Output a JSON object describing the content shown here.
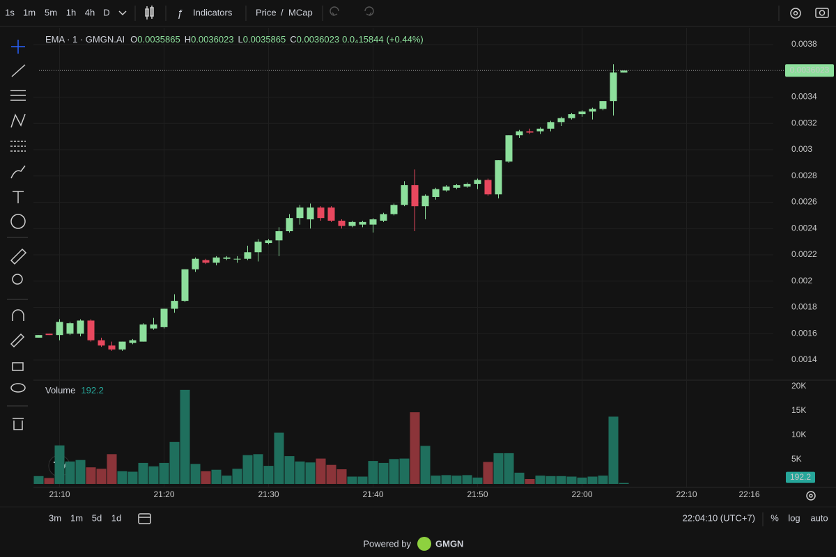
{
  "ui": {
    "intervals": [
      "1s",
      "1m",
      "5m",
      "1h",
      "4h",
      "D"
    ],
    "active_interval": 1,
    "indicators": "Indicators",
    "price": "Price",
    "separator": "/",
    "mcap": "MCap",
    "ranges": [
      "3m",
      "1m",
      "5d",
      "1d"
    ],
    "clock": "22:04:10 (UTC+7)",
    "percent": "%",
    "log": "log",
    "auto": "auto",
    "powered_by": "Powered by",
    "brand": "GMGN"
  },
  "chart_data": {
    "type": "candlestick",
    "title": "EMA · 1 · GMGN.AI",
    "ohlc_labels": [
      "O",
      "H",
      "L",
      "C"
    ],
    "change": "0.0₄15844",
    "change_percent": "(+0.44%)",
    "up_color": "#8ddf9c",
    "down_color": "#e8485e",
    "xlim": [
      -0.5,
      70.5
    ],
    "xticks": [
      {
        "value": 2,
        "label": "21:10"
      },
      {
        "value": 12,
        "label": "21:20"
      },
      {
        "value": 22,
        "label": "21:30"
      },
      {
        "value": 32,
        "label": "21:40"
      },
      {
        "value": 42,
        "label": "21:50"
      },
      {
        "value": 52,
        "label": "22:00"
      },
      {
        "value": 62,
        "label": "22:10"
      },
      {
        "value": 68,
        "label": "22:16"
      }
    ],
    "ylim": [
      0.001252,
      0.003927
    ],
    "yticks": [
      0.0038,
      0.0034,
      0.0032,
      0.003,
      0.0028,
      0.0026,
      0.0024,
      0.0022,
      0.002,
      0.0018,
      0.0016,
      0.0014
    ],
    "grid": true,
    "open": [
      0.00157,
      0.0016,
      0.00159,
      0.0016,
      0.0016,
      0.0017,
      0.00155,
      0.00151,
      0.00148,
      0.00153,
      0.00154,
      0.00164,
      0.00165,
      0.00179,
      0.00185,
      0.00209,
      0.00216,
      0.00214,
      0.00217,
      0.00217,
      0.00217,
      0.00222,
      0.00229,
      0.00231,
      0.00238,
      0.00248,
      0.00247,
      0.00256,
      0.00256,
      0.00246,
      0.00242,
      0.00243,
      0.00243,
      0.00246,
      0.00251,
      0.00258,
      0.00273,
      0.00257,
      0.00264,
      0.00269,
      0.00271,
      0.00272,
      0.00274,
      0.00277,
      0.00266,
      0.00291,
      0.00311,
      0.00314,
      0.00314,
      0.00316,
      0.00321,
      0.00324,
      0.00327,
      0.00329,
      0.00331,
      0.00337,
      0.0035865
    ],
    "high": [
      0.00159,
      0.0016,
      0.00171,
      0.00169,
      0.00171,
      0.00171,
      0.00157,
      0.00154,
      0.00154,
      0.00156,
      0.00168,
      0.00172,
      0.00179,
      0.0019,
      0.00209,
      0.00218,
      0.00217,
      0.00219,
      0.00219,
      0.00219,
      0.00227,
      0.00232,
      0.00232,
      0.00241,
      0.00251,
      0.00258,
      0.00259,
      0.00257,
      0.00257,
      0.00247,
      0.00246,
      0.00246,
      0.00248,
      0.00252,
      0.00259,
      0.00276,
      0.00285,
      0.00266,
      0.00271,
      0.00273,
      0.00274,
      0.00275,
      0.00278,
      0.00278,
      0.00292,
      0.00311,
      0.00315,
      0.00316,
      0.00317,
      0.00322,
      0.00325,
      0.00328,
      0.0033,
      0.00332,
      0.00337,
      0.00365,
      0.0036023
    ],
    "low": [
      0.00157,
      0.00159,
      0.00155,
      0.00159,
      0.00158,
      0.00154,
      0.0015,
      0.00147,
      0.00147,
      0.00152,
      0.00154,
      0.00163,
      0.00164,
      0.00176,
      0.00184,
      0.00207,
      0.00213,
      0.00212,
      0.00216,
      0.00214,
      0.00216,
      0.00215,
      0.00228,
      0.00219,
      0.00237,
      0.00243,
      0.0024,
      0.00246,
      0.00245,
      0.0024,
      0.00241,
      0.00241,
      0.00237,
      0.00245,
      0.0025,
      0.00257,
      0.00238,
      0.00247,
      0.00262,
      0.00268,
      0.0027,
      0.00271,
      0.0027,
      0.00265,
      0.00263,
      0.0029,
      0.00309,
      0.00312,
      0.00312,
      0.00314,
      0.00318,
      0.00323,
      0.00325,
      0.00323,
      0.0033,
      0.00326,
      0.0035865
    ],
    "close": [
      0.00159,
      0.00159,
      0.00169,
      0.00168,
      0.0017,
      0.00155,
      0.00151,
      0.00148,
      0.00154,
      0.00155,
      0.00167,
      0.00167,
      0.00179,
      0.00185,
      0.00209,
      0.00217,
      0.00214,
      0.00218,
      0.00218,
      0.00217,
      0.00222,
      0.0023,
      0.00231,
      0.00238,
      0.00248,
      0.00256,
      0.00256,
      0.00248,
      0.00246,
      0.00242,
      0.00245,
      0.00245,
      0.00247,
      0.00251,
      0.00258,
      0.00273,
      0.00257,
      0.00265,
      0.0027,
      0.00272,
      0.00273,
      0.00274,
      0.00277,
      0.00266,
      0.00292,
      0.00311,
      0.00314,
      0.00313,
      0.00316,
      0.00321,
      0.00324,
      0.00327,
      0.00329,
      0.00331,
      0.00337,
      0.003587,
      0.0036023
    ],
    "volume": {
      "name": "Volume",
      "up_color": "#1f6f5d",
      "down_color": "#8b3439",
      "label_color": "#26a69a",
      "ylim": [
        0,
        21000
      ],
      "yticks": [
        {
          "value": 20000,
          "label": "20K"
        },
        {
          "value": 15000,
          "label": "15K"
        },
        {
          "value": 10000,
          "label": "10K"
        },
        {
          "value": 5000,
          "label": "5K"
        }
      ],
      "values": [
        1600,
        1200,
        7900,
        4600,
        4900,
        3400,
        3100,
        6100,
        2600,
        2500,
        4300,
        3600,
        4300,
        8600,
        19300,
        4100,
        2600,
        2900,
        1700,
        3100,
        5900,
        6100,
        3700,
        10500,
        5700,
        4600,
        4400,
        5200,
        3900,
        3000,
        1500,
        1500,
        4700,
        4300,
        5100,
        5200,
        14700,
        7800,
        1700,
        1800,
        1700,
        1800,
        1300,
        4500,
        6300,
        6300,
        2300,
        1000,
        1700,
        1600,
        1600,
        1500,
        1300,
        1500,
        1700,
        13800,
        192.2
      ]
    }
  }
}
